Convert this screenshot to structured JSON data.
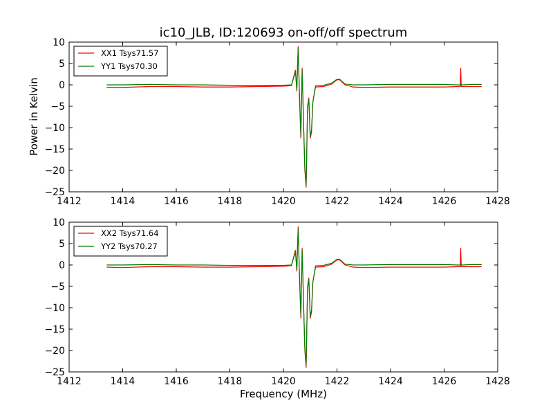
{
  "chart_data": [
    {
      "type": "line",
      "title": "ic10_JLB, ID:120693 on-off/off spectrum",
      "xlabel": "",
      "ylabel": "Power in Kelvin",
      "xlim": [
        1412,
        1428
      ],
      "ylim": [
        -25,
        10
      ],
      "xticks": [
        "1412",
        "1414",
        "1416",
        "1418",
        "1420",
        "1422",
        "1424",
        "1426",
        "1428"
      ],
      "yticks": [
        "10",
        "5",
        "0",
        "−5",
        "−10",
        "−15",
        "−20",
        "−25"
      ],
      "legend_position": "upper-left",
      "series": [
        {
          "name": "XX1 Tsys71.57",
          "color": "#ff0000",
          "x": [
            1413.4,
            1414.0,
            1415.0,
            1416.0,
            1417.0,
            1418.0,
            1419.0,
            1420.0,
            1420.3,
            1420.45,
            1420.5,
            1420.55,
            1420.6,
            1420.65,
            1420.7,
            1420.75,
            1420.8,
            1420.85,
            1420.9,
            1420.95,
            1421.0,
            1421.05,
            1421.1,
            1421.2,
            1421.5,
            1421.8,
            1422.0,
            1422.1,
            1422.3,
            1422.6,
            1423.0,
            1424.0,
            1425.0,
            1426.0,
            1426.5,
            1426.6,
            1426.62,
            1426.64,
            1426.7,
            1427.0,
            1427.4
          ],
          "y": [
            -0.6,
            -0.6,
            -0.4,
            -0.4,
            -0.5,
            -0.5,
            -0.4,
            -0.3,
            -0.2,
            3.5,
            -1.5,
            9.0,
            -2.5,
            -12.5,
            4.0,
            -9.0,
            -20.0,
            -24.0,
            -5.0,
            -3.0,
            -12.5,
            -11.0,
            -4.0,
            -0.5,
            -0.4,
            0.2,
            1.2,
            1.2,
            0.0,
            -0.5,
            -0.6,
            -0.5,
            -0.5,
            -0.5,
            -0.4,
            -0.4,
            4.0,
            -0.4,
            -0.4,
            -0.4,
            -0.4
          ]
        },
        {
          "name": "YY1 Tsys70.30",
          "color": "#007f00",
          "x": [
            1413.4,
            1414.0,
            1415.0,
            1416.0,
            1417.0,
            1418.0,
            1419.0,
            1420.0,
            1420.3,
            1420.45,
            1420.5,
            1420.55,
            1420.6,
            1420.65,
            1420.7,
            1420.75,
            1420.8,
            1420.85,
            1420.9,
            1420.95,
            1421.0,
            1421.05,
            1421.1,
            1421.2,
            1421.5,
            1421.8,
            1422.0,
            1422.1,
            1422.3,
            1422.6,
            1423.0,
            1424.0,
            1425.0,
            1426.0,
            1426.5,
            1426.6,
            1426.62,
            1426.64,
            1426.7,
            1427.0,
            1427.4
          ],
          "y": [
            0.0,
            0.0,
            0.1,
            0.0,
            0.0,
            -0.1,
            -0.1,
            -0.1,
            0.0,
            3.0,
            -1.0,
            8.5,
            -2.0,
            -12.0,
            3.5,
            -8.5,
            -19.5,
            -23.5,
            -5.5,
            -3.5,
            -12.0,
            -10.5,
            -4.0,
            -0.2,
            -0.1,
            0.4,
            1.3,
            1.3,
            0.2,
            0.0,
            0.0,
            0.1,
            0.1,
            0.1,
            0.0,
            0.0,
            0.2,
            0.0,
            0.0,
            0.1,
            0.1
          ]
        }
      ]
    },
    {
      "type": "line",
      "title": "",
      "xlabel": "Frequency (MHz)",
      "ylabel": "",
      "xlim": [
        1412,
        1428
      ],
      "ylim": [
        -25,
        10
      ],
      "xticks": [
        "1412",
        "1414",
        "1416",
        "1418",
        "1420",
        "1422",
        "1424",
        "1426",
        "1428"
      ],
      "yticks": [
        "10",
        "5",
        "0",
        "−5",
        "−10",
        "−15",
        "−20",
        "−25"
      ],
      "legend_position": "upper-left",
      "series": [
        {
          "name": "XX2 Tsys71.64",
          "color": "#ff0000",
          "x": [
            1413.4,
            1414.0,
            1415.0,
            1416.0,
            1417.0,
            1418.0,
            1419.0,
            1420.0,
            1420.3,
            1420.45,
            1420.5,
            1420.55,
            1420.6,
            1420.65,
            1420.7,
            1420.75,
            1420.8,
            1420.85,
            1420.9,
            1420.95,
            1421.0,
            1421.05,
            1421.1,
            1421.2,
            1421.5,
            1421.8,
            1422.0,
            1422.1,
            1422.3,
            1422.6,
            1423.0,
            1424.0,
            1425.0,
            1426.0,
            1426.5,
            1426.6,
            1426.62,
            1426.64,
            1426.7,
            1427.0,
            1427.4
          ],
          "y": [
            -0.5,
            -0.6,
            -0.4,
            -0.4,
            -0.5,
            -0.5,
            -0.4,
            -0.3,
            -0.2,
            3.5,
            -1.5,
            9.0,
            -2.5,
            -12.5,
            4.0,
            -9.0,
            -20.0,
            -24.0,
            -5.0,
            -3.0,
            -12.5,
            -11.0,
            -4.0,
            -0.5,
            -0.4,
            0.2,
            1.2,
            1.2,
            0.0,
            -0.5,
            -0.6,
            -0.5,
            -0.5,
            -0.5,
            -0.4,
            -0.4,
            4.0,
            -0.4,
            -0.4,
            -0.4,
            -0.4
          ]
        },
        {
          "name": "YY2 Tsys70.27",
          "color": "#007f00",
          "x": [
            1413.4,
            1414.0,
            1415.0,
            1416.0,
            1417.0,
            1418.0,
            1419.0,
            1420.0,
            1420.3,
            1420.45,
            1420.5,
            1420.55,
            1420.6,
            1420.65,
            1420.7,
            1420.75,
            1420.8,
            1420.85,
            1420.9,
            1420.95,
            1421.0,
            1421.05,
            1421.1,
            1421.2,
            1421.5,
            1421.8,
            1422.0,
            1422.1,
            1422.3,
            1422.6,
            1423.0,
            1424.0,
            1425.0,
            1426.0,
            1426.5,
            1426.6,
            1426.62,
            1426.64,
            1426.7,
            1427.0,
            1427.4
          ],
          "y": [
            0.0,
            0.0,
            0.1,
            0.0,
            0.0,
            -0.1,
            -0.1,
            -0.1,
            0.0,
            3.0,
            -1.0,
            8.5,
            -2.0,
            -12.0,
            3.5,
            -8.5,
            -19.5,
            -23.5,
            -5.5,
            -3.5,
            -12.0,
            -10.5,
            -4.0,
            -0.2,
            -0.1,
            0.4,
            1.3,
            1.3,
            0.2,
            0.0,
            0.0,
            0.1,
            0.1,
            0.1,
            0.0,
            0.0,
            0.2,
            0.0,
            0.0,
            0.1,
            0.1
          ]
        }
      ]
    }
  ]
}
